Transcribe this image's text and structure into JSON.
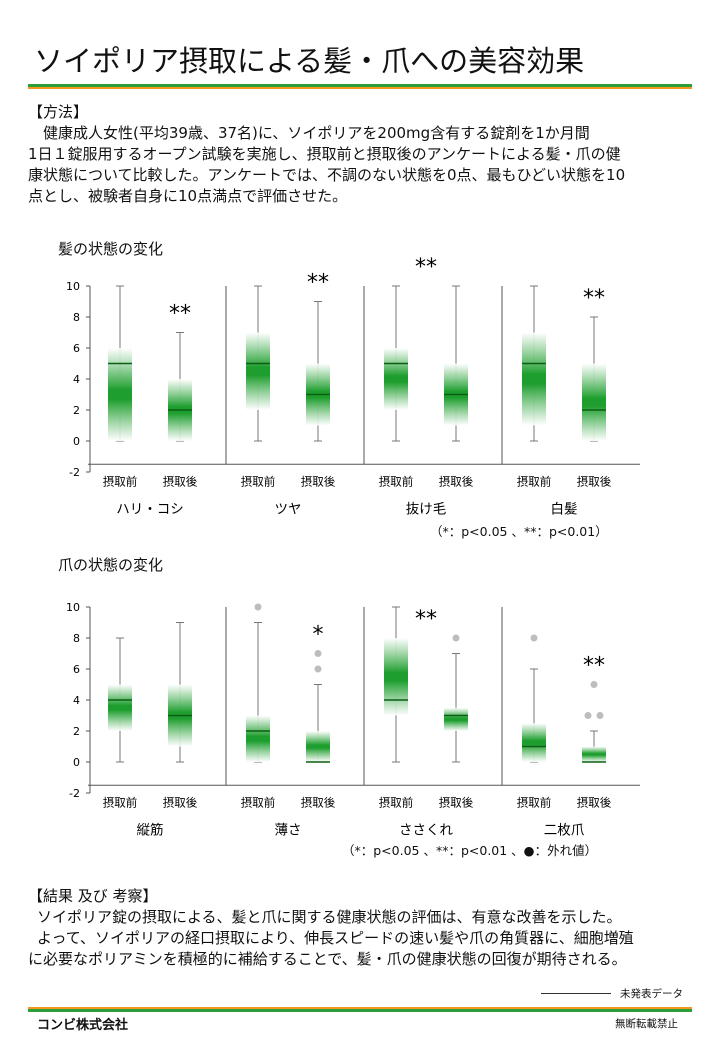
{
  "title": "ソイポリア摂取による髪・爪への美容効果",
  "method": {
    "heading": "【方法】",
    "lines": [
      "健康成人女性(平均39歳、37名)に、ソイポリアを200mg含有する錠剤を1か月間",
      "1日１錠服用するオープン試験を実施し、摂取前と摂取後のアンケートによる髪・爪の健",
      "康状態について比較した。アンケートでは、不調のない状態を0点、最もひどい状態を10",
      "点とし、被験者自身に10点満点で評価させた。"
    ]
  },
  "hair_heading": "髪の状態の変化",
  "hair_note": "（*：p<0.05 、**：p<0.01）",
  "nail_heading": "爪の状態の変化",
  "nail_note": "（*：p<0.05 、**：p<0.01 、●：外れ値）",
  "result": {
    "heading": "【結果 及び 考察】",
    "lines": [
      "ソイポリア錠の摂取による、髪と爪に関する健康状態の評価は、有意な改善を示した。",
      "よって、ソイポリアの経口摂取により、伸長スピードの速い髪や爪の角質器に、細胞増殖",
      "に必要なポリアミンを積極的に補給することで、髪・爪の健康状態の回復が期待される。"
    ]
  },
  "unpublished": "未発表データ",
  "company": "コンビ株式会社",
  "copyright": "無断転載禁止",
  "colors": {
    "accent_green": "#2f9e3a",
    "accent_orange": "#f39a1e",
    "box_green": "#1e9e2e",
    "outlier_gray": "#bdbdbd"
  },
  "chart_data": [
    {
      "type": "boxplot",
      "title": "髪の状態の変化",
      "ylim": [
        -2,
        10
      ],
      "yticks": [
        -2,
        0,
        2,
        4,
        6,
        8,
        10
      ],
      "categories": [
        "摂取前",
        "摂取後"
      ],
      "panels": [
        {
          "name": "ハリ・コシ",
          "boxes": [
            {
              "label": "摂取前",
              "min": 0,
              "q1": 0,
              "median": 5,
              "q3": 6,
              "max": 10,
              "outliers": []
            },
            {
              "label": "摂取後",
              "min": 0,
              "q1": 0,
              "median": 2,
              "q3": 4,
              "max": 7,
              "outliers": []
            }
          ],
          "sig": "**"
        },
        {
          "name": "ツヤ",
          "boxes": [
            {
              "label": "摂取前",
              "min": 0,
              "q1": 2,
              "median": 5,
              "q3": 7,
              "max": 10,
              "outliers": []
            },
            {
              "label": "摂取後",
              "min": 0,
              "q1": 1,
              "median": 3,
              "q3": 5,
              "max": 9,
              "outliers": []
            }
          ],
          "sig": "**"
        },
        {
          "name": "抜け毛",
          "boxes": [
            {
              "label": "摂取前",
              "min": 0,
              "q1": 2,
              "median": 5,
              "q3": 6,
              "max": 10,
              "outliers": []
            },
            {
              "label": "摂取後",
              "min": 0,
              "q1": 1,
              "median": 3,
              "q3": 5,
              "max": 10,
              "outliers": []
            }
          ],
          "sig": "**"
        },
        {
          "name": "白髪",
          "boxes": [
            {
              "label": "摂取前",
              "min": 0,
              "q1": 1,
              "median": 5,
              "q3": 7,
              "max": 10,
              "outliers": []
            },
            {
              "label": "摂取後",
              "min": 0,
              "q1": 0,
              "median": 2,
              "q3": 5,
              "max": 8,
              "outliers": []
            }
          ],
          "sig": "**"
        }
      ]
    },
    {
      "type": "boxplot",
      "title": "爪の状態の変化",
      "ylim": [
        -2,
        10
      ],
      "yticks": [
        -2,
        0,
        2,
        4,
        6,
        8,
        10
      ],
      "categories": [
        "摂取前",
        "摂取後"
      ],
      "panels": [
        {
          "name": "縦筋",
          "boxes": [
            {
              "label": "摂取前",
              "min": 0,
              "q1": 2,
              "median": 4,
              "q3": 5,
              "max": 8,
              "outliers": []
            },
            {
              "label": "摂取後",
              "min": 0,
              "q1": 1,
              "median": 3,
              "q3": 5,
              "max": 9,
              "outliers": []
            }
          ],
          "sig": ""
        },
        {
          "name": "薄さ",
          "boxes": [
            {
              "label": "摂取前",
              "min": 0,
              "q1": 0,
              "median": 2,
              "q3": 3,
              "max": 9,
              "outliers": [
                10
              ]
            },
            {
              "label": "摂取後",
              "min": 0,
              "q1": 0,
              "median": 0,
              "q3": 2,
              "max": 5,
              "outliers": [
                6,
                7
              ]
            }
          ],
          "sig": "*"
        },
        {
          "name": "ささくれ",
          "boxes": [
            {
              "label": "摂取前",
              "min": 0,
              "q1": 3,
              "median": 4,
              "q3": 8,
              "max": 10,
              "outliers": []
            },
            {
              "label": "摂取後",
              "min": 0,
              "q1": 2,
              "median": 3,
              "q3": 3.5,
              "max": 7,
              "outliers": [
                8
              ]
            }
          ],
          "sig": "**"
        },
        {
          "name": "二枚爪",
          "boxes": [
            {
              "label": "摂取前",
              "min": 0,
              "q1": 0,
              "median": 1,
              "q3": 2.5,
              "max": 6,
              "outliers": [
                8
              ]
            },
            {
              "label": "摂取後",
              "min": 0,
              "q1": 0,
              "median": 0,
              "q3": 1,
              "max": 2,
              "outliers": [
                3,
                3,
                5
              ]
            }
          ],
          "sig": "**"
        }
      ]
    }
  ]
}
